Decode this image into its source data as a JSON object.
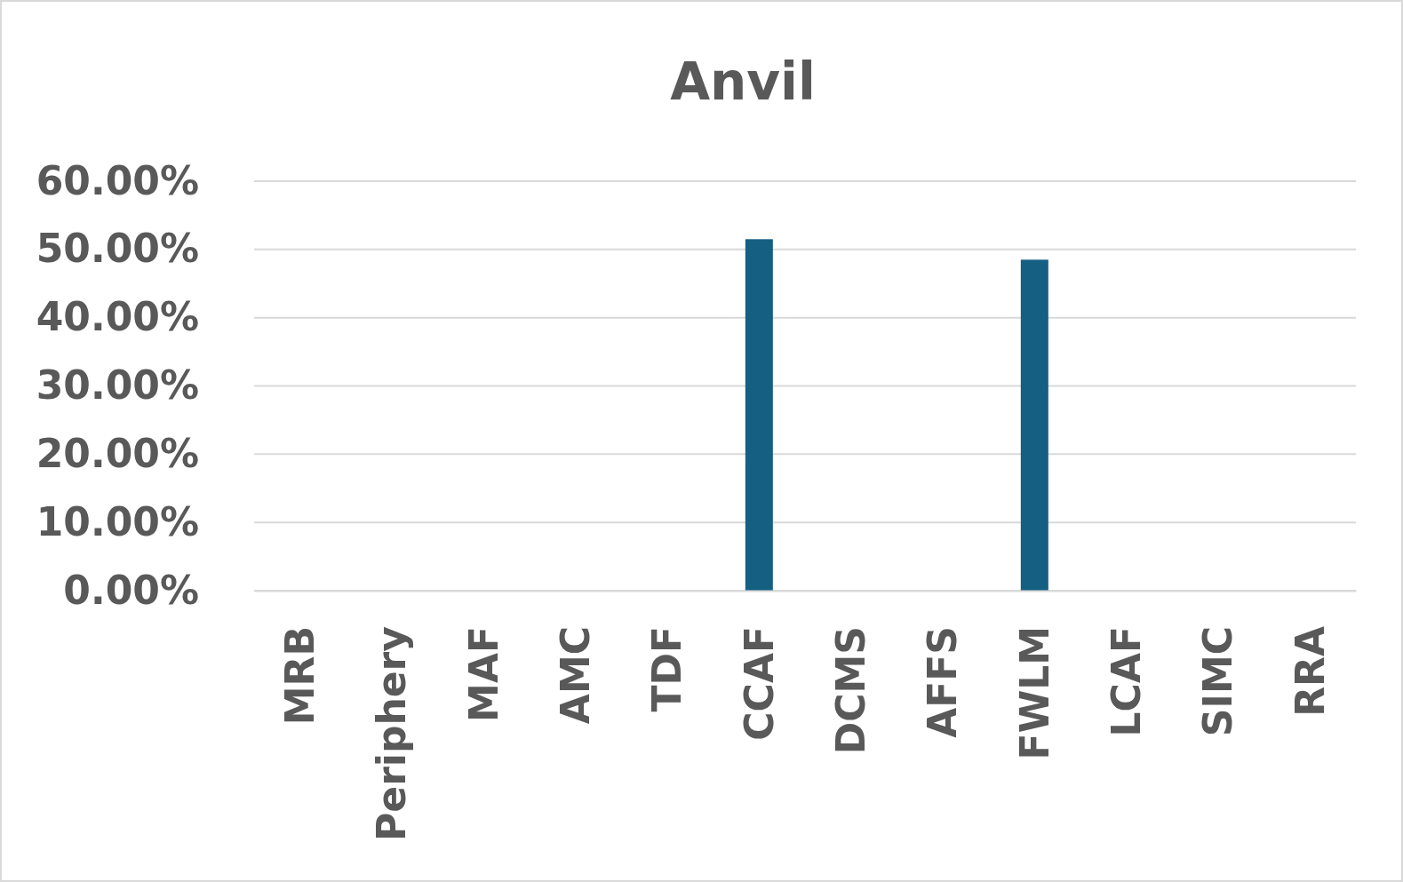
{
  "chart_data": {
    "type": "bar",
    "title": "Anvil",
    "categories": [
      "MRB",
      "Periphery",
      "MAF",
      "AMC",
      "TDF",
      "CCAF",
      "DCMS",
      "AFFS",
      "FWLM",
      "LCAF",
      "SIMC",
      "RRA"
    ],
    "values": [
      0,
      0,
      0,
      0,
      0,
      51.5,
      0,
      0,
      48.5,
      0,
      0,
      0
    ],
    "color": "#155f83",
    "ylim": [
      0,
      60
    ],
    "yticks": [
      {
        "value": 0,
        "label": "0.00%"
      },
      {
        "value": 10,
        "label": "10.00%"
      },
      {
        "value": 20,
        "label": "20.00%"
      },
      {
        "value": 30,
        "label": "30.00%"
      },
      {
        "value": 40,
        "label": "40.00%"
      },
      {
        "value": 50,
        "label": "50.00%"
      },
      {
        "value": 60,
        "label": "60.00%"
      }
    ],
    "grid": "y"
  }
}
